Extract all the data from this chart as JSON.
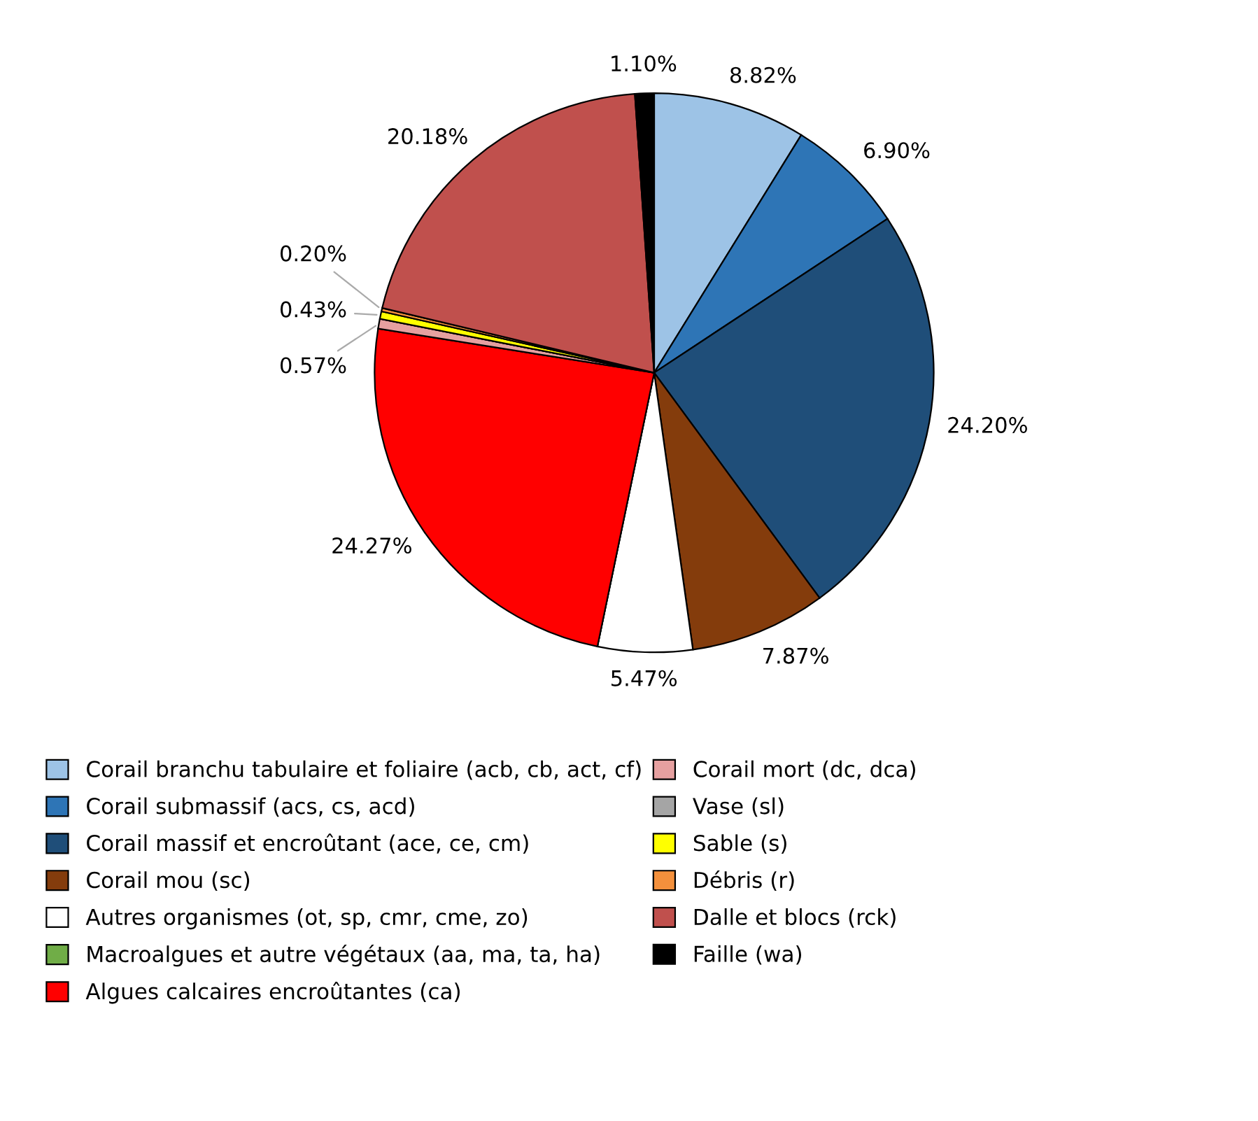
{
  "chart_data": {
    "type": "pie",
    "legend": "bottom",
    "categories": [
      "Corail branchu tabulaire et foliaire (acb, cb, act, cf)",
      "Corail submassif (acs, cs, acd)",
      "Corail massif et encroûtant (ace, ce, cm)",
      "Corail mou (sc)",
      "Autres organismes (ot, sp, cmr, cme, zo)",
      "Macroalgues et autre végétaux (aa, ma, ta, ha)",
      "Algues calcaires encroûtantes (ca)",
      "Corail mort (dc, dca)",
      "Vase (sl)",
      "Sable (s)",
      "Débris (r)",
      "Dalle et blocs (rck)",
      "Faille (wa)"
    ],
    "values": [
      8.82,
      6.9,
      24.2,
      7.87,
      5.47,
      0,
      24.27,
      0.57,
      0,
      0.43,
      0.2,
      20.18,
      1.1
    ],
    "value_labels": [
      "8.82%",
      "6.90%",
      "24.20%",
      "7.87%",
      "5.47%",
      null,
      "24.27%",
      "0.57%",
      null,
      "0.43%",
      "0.20%",
      "20.18%",
      "1.10%"
    ],
    "colors": [
      "#9dc3e6",
      "#2e75b6",
      "#1f4e79",
      "#843c0c",
      "#ffffff",
      "#70ad47",
      "#ff0000",
      "#e6a0a0",
      "#a5a5a5",
      "#ffff00",
      "#f4903c",
      "#c0504d",
      "#000000"
    ]
  }
}
